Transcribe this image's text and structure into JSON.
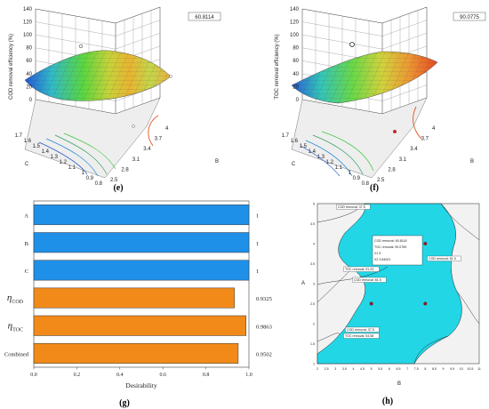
{
  "panels": {
    "e": "(e)",
    "f": "(f)",
    "g": "(g)",
    "h": "(h)"
  },
  "chart_data": [
    {
      "panel": "e",
      "type": "surface",
      "zlabel": "COD removal efficiency (%)",
      "xlabel": "B",
      "ylabel": "C",
      "zticks": [
        "0",
        "20",
        "40",
        "60",
        "80",
        "100",
        "120",
        "140"
      ],
      "xticks": [
        "2.5",
        "2.8",
        "3.1",
        "3.4",
        "3.7",
        "4"
      ],
      "yticks": [
        "0.8",
        "0.9",
        "1",
        "1.1",
        "1.2",
        "1.3",
        "1.4",
        "1.5",
        "1.6",
        "1.7"
      ],
      "annotation": "60.8114",
      "colors": {
        "low": "#1f5fd0",
        "mid": "#48d040",
        "high": "#e83a1e"
      }
    },
    {
      "panel": "f",
      "type": "surface",
      "zlabel": "TOC removal efficiency (%)",
      "xlabel": "B",
      "ylabel": "C",
      "zticks": [
        "0",
        "20",
        "40",
        "60",
        "80",
        "100",
        "120",
        "140"
      ],
      "xticks": [
        "2.5",
        "2.8",
        "3.1",
        "3.4",
        "3.7",
        "4"
      ],
      "yticks": [
        "0.8",
        "0.9",
        "1",
        "1.1",
        "1.2",
        "1.3",
        "1.4",
        "1.5",
        "1.6",
        "1.7"
      ],
      "annotation": "90.0775",
      "colors": {
        "low": "#1f5fd0",
        "mid": "#48d040",
        "high": "#e83a1e"
      }
    },
    {
      "panel": "g",
      "type": "bar",
      "orientation": "horizontal",
      "xlabel": "Desirability",
      "xlim": [
        0,
        1
      ],
      "xticks": [
        "0.0",
        "0.2",
        "0.4",
        "0.6",
        "0.8",
        "1.0"
      ],
      "bars": [
        {
          "label": "A",
          "value": 1,
          "value_label": "1",
          "color": "#1e90e8"
        },
        {
          "label": "B",
          "value": 1,
          "value_label": "1",
          "color": "#1e90e8"
        },
        {
          "label": "C",
          "value": 1,
          "value_label": "1",
          "color": "#1e90e8"
        },
        {
          "label": "η",
          "sub": "COD",
          "value": 0.9325,
          "value_label": "0.9325",
          "color": "#f28a1a"
        },
        {
          "label": "η",
          "sub": "TOC",
          "value": 0.9863,
          "value_label": "0.9863",
          "color": "#f28a1a"
        },
        {
          "label": "Combined",
          "value": 0.9502,
          "value_label": "0.9502",
          "color": "#f28a1a"
        }
      ]
    },
    {
      "panel": "h",
      "type": "contour-overlay",
      "xlabel": "B",
      "ylabel": "A",
      "xlim": [
        2,
        11
      ],
      "ylim": [
        1,
        5
      ],
      "xticks": [
        "2",
        "2.5",
        "3",
        "3.5",
        "4",
        "4.5",
        "5",
        "5.5",
        "6",
        "6.5",
        "7",
        "7.5",
        "8",
        "8.5",
        "9",
        "9.5",
        "10",
        "10.5",
        "11"
      ],
      "yticks": [
        "1",
        "1.5",
        "2",
        "2.5",
        "3",
        "3.5",
        "4",
        "4.5",
        "5"
      ],
      "overlay_color": "#22d6e6",
      "points": [
        {
          "x": 8,
          "y": 4
        },
        {
          "x": 5,
          "y": 2.5
        },
        {
          "x": 8,
          "y": 2.5
        }
      ],
      "labels": [
        "COD removal: 37.5",
        "COD removal: 61.5",
        "TOC removal: 91.24",
        "COD removal: 61.5",
        "COD removal: 37.5",
        "TOC removal: 54.58"
      ],
      "flag": {
        "lines": [
          "COD removal: 60.8118",
          "TOC removal: 90.0769",
          "X1  5",
          "X2  3.84001"
        ]
      }
    }
  ]
}
